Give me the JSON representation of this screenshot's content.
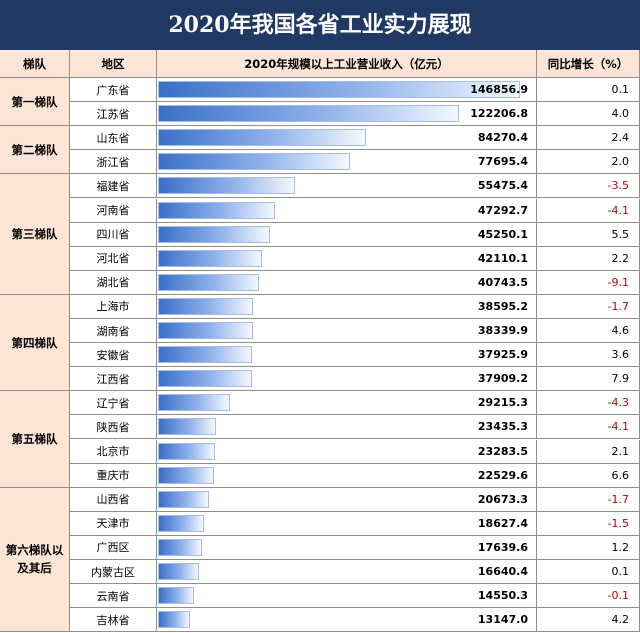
{
  "title": "2020年我国各省工业实力展现",
  "headers": {
    "tier": "梯队",
    "region": "地区",
    "revenue": "2020年规模以上工业营业收入（亿元）",
    "growth": "同比增长（%）"
  },
  "chart_data": {
    "type": "bar",
    "orientation": "horizontal",
    "title": "2020年我国各省工业实力展现",
    "value_label": "2020年规模以上工业营业收入（亿元）",
    "growth_label": "同比增长（%）",
    "categories": [
      "广东省",
      "江苏省",
      "山东省",
      "浙江省",
      "福建省",
      "河南省",
      "四川省",
      "河北省",
      "湖北省",
      "上海市",
      "湖南省",
      "安徽省",
      "江西省",
      "辽宁省",
      "陕西省",
      "北京市",
      "重庆市",
      "山西省",
      "天津市",
      "广西区",
      "内蒙古区",
      "云南省",
      "吉林省"
    ],
    "values": [
      146856.9,
      122206.8,
      84270.4,
      77695.4,
      55475.4,
      47292.7,
      45250.1,
      42110.1,
      40743.5,
      38595.2,
      38339.9,
      37925.9,
      37909.2,
      29215.3,
      23435.3,
      23283.5,
      22529.6,
      20673.3,
      18627.4,
      17639.6,
      16640.4,
      14550.3,
      13147.0
    ],
    "value_texts": [
      "146856.9",
      "122206.8",
      "84270.4",
      "77695.4",
      "55475.4",
      "47292.7",
      "45250.1",
      "42110.1",
      "40743.5",
      "38595.2",
      "38339.9",
      "37925.9",
      "37909.2",
      "29215.3",
      "23435.3",
      "23283.5",
      "22529.6",
      "20673.3",
      "18627.4",
      "17639.6",
      "16640.4",
      "14550.3",
      "13147.0"
    ],
    "growth": [
      "0.1",
      "4.0",
      "2.4",
      "2.0",
      "-3.5",
      "-4.1",
      "5.5",
      "2.2",
      "-9.1",
      "-1.7",
      "4.6",
      "3.6",
      "7.9",
      "-4.3",
      "-4.1",
      "2.1",
      "6.6",
      "-1.7",
      "-1.5",
      "1.2",
      "0.1",
      "-0.1",
      "4.2"
    ],
    "tiers": [
      {
        "label": "第一梯队",
        "count": 2
      },
      {
        "label": "第二梯队",
        "count": 2
      },
      {
        "label": "第三梯队",
        "count": 5
      },
      {
        "label": "第四梯队",
        "count": 4
      },
      {
        "label": "第五梯队",
        "count": 4
      },
      {
        "label": "第六梯队以及其后",
        "count": 6
      }
    ],
    "xlim": [
      0,
      150000
    ],
    "colors": {
      "bar": "#3a6fc9",
      "negative": "#c00000",
      "header_bg": "#fce4d6",
      "title_bg": "#1f3864"
    }
  }
}
